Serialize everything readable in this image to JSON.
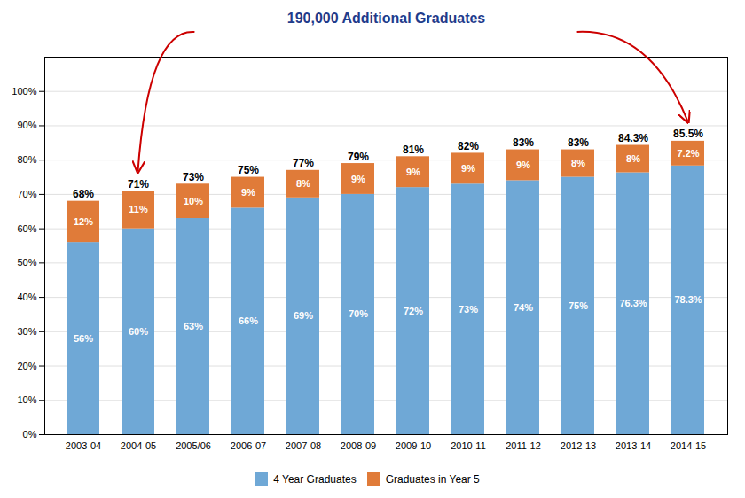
{
  "chart_data": {
    "type": "bar",
    "stacked": true,
    "data_labels": true,
    "grid": true,
    "legend": "bottom",
    "categories": [
      "2003-04",
      "2004-05",
      "2005/06",
      "2006-07",
      "2007-08",
      "2008-09",
      "2009-10",
      "2010-11",
      "2011-12",
      "2012-13",
      "2013-14",
      "2014-15"
    ],
    "series": [
      {
        "name": "4 Year Graduates",
        "color": "#6fa8d6",
        "values": [
          56,
          60,
          63,
          66,
          69,
          70,
          72,
          73,
          74,
          75,
          76.3,
          78.3
        ],
        "value_labels": [
          "56%",
          "60%",
          "63%",
          "66%",
          "69%",
          "70%",
          "72%",
          "73%",
          "74%",
          "75%",
          "76.3%",
          "78.3%"
        ]
      },
      {
        "name": "Graduates in Year 5",
        "color": "#e07b39",
        "values": [
          12,
          11,
          10,
          9,
          8,
          9,
          9,
          9,
          9,
          8,
          8,
          7.2
        ],
        "value_labels": [
          "12%",
          "11%",
          "10%",
          "9%",
          "8%",
          "9%",
          "9%",
          "9%",
          "9%",
          "8%",
          "8%",
          "7.2%"
        ]
      }
    ],
    "totals": [
      68,
      71,
      73,
      75,
      77,
      79,
      81,
      82,
      83,
      83,
      84.3,
      85.5
    ],
    "total_labels": [
      "68%",
      "71%",
      "73%",
      "75%",
      "77%",
      "79%",
      "81%",
      "82%",
      "83%",
      "83%",
      "84.3%",
      "85.5%"
    ],
    "annotations": [
      {
        "text": "190,000 Additional Graduates",
        "color": "#1f3c8c",
        "arrow_color": "#cc0000"
      }
    ],
    "ylim": [
      0,
      110
    ],
    "yticks": [
      {
        "value": 0,
        "label": "0%"
      },
      {
        "value": 10,
        "label": "10%"
      },
      {
        "value": 20,
        "label": "20%"
      },
      {
        "value": 30,
        "label": "30%"
      },
      {
        "value": 40,
        "label": "40%"
      },
      {
        "value": 50,
        "label": "50%"
      },
      {
        "value": 60,
        "label": "60%"
      },
      {
        "value": 70,
        "label": "70%"
      },
      {
        "value": 80,
        "label": "80%"
      },
      {
        "value": 90,
        "label": "90%"
      },
      {
        "value": 100,
        "label": "100%"
      }
    ]
  }
}
